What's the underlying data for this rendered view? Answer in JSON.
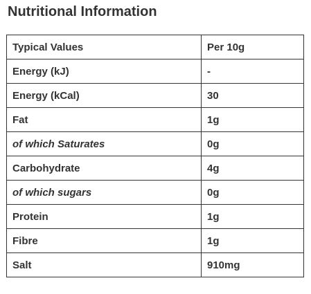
{
  "title": "Nutritional Information",
  "table": {
    "header": {
      "label": "Typical Values",
      "value": "Per 10g"
    },
    "rows": [
      {
        "label": "Energy (kJ)",
        "value": "-",
        "italic": false
      },
      {
        "label": "Energy (kCal)",
        "value": "30",
        "italic": false
      },
      {
        "label": "Fat",
        "value": "1g",
        "italic": false
      },
      {
        "label": "of which Saturates",
        "value": "0g",
        "italic": true
      },
      {
        "label": "Carbohydrate",
        "value": "4g",
        "italic": false
      },
      {
        "label": "of which sugars",
        "value": "0g",
        "italic": true
      },
      {
        "label": "Protein",
        "value": "1g",
        "italic": false
      },
      {
        "label": "Fibre",
        "value": "1g",
        "italic": false
      },
      {
        "label": "Salt",
        "value": "910mg",
        "italic": false
      }
    ]
  }
}
